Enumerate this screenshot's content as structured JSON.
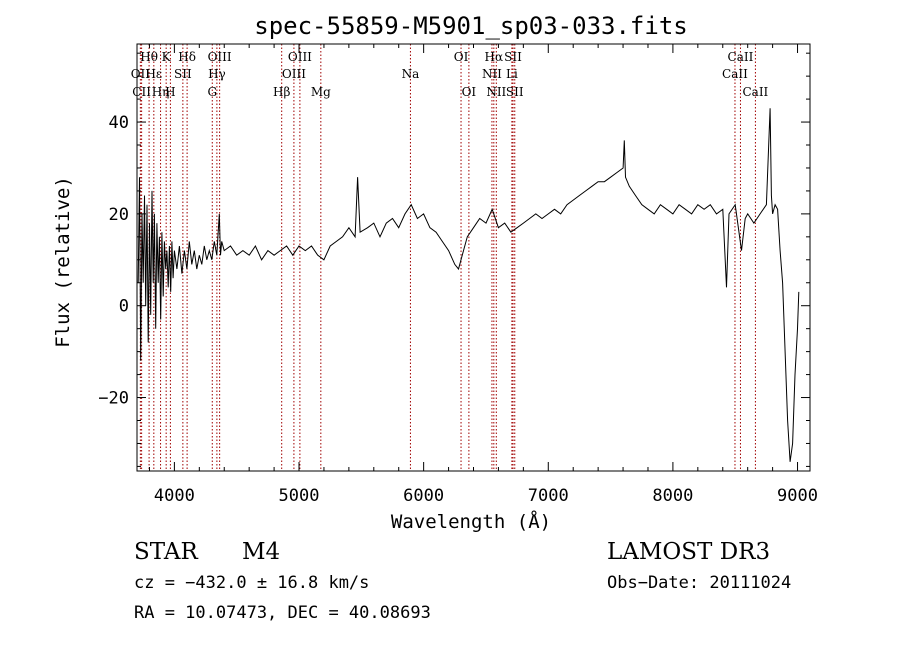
{
  "chart_data": {
    "type": "line",
    "title": "spec-55859-M5901_sp03-033.fits",
    "xlabel": "Wavelength (Å)",
    "ylabel": "Flux (relative)",
    "xlim": [
      3700,
      9100
    ],
    "ylim": [
      -36,
      57
    ],
    "x_ticks": [
      4000,
      5000,
      6000,
      7000,
      8000,
      9000
    ],
    "x_tick_labels": [
      "4000",
      "5000",
      "6000",
      "7000",
      "8000",
      "9000"
    ],
    "y_ticks": [
      -20,
      0,
      20,
      40
    ],
    "y_tick_labels": [
      "−20",
      "0",
      "20",
      "40"
    ],
    "series": [
      {
        "name": "flux",
        "points": [
          [
            3710,
            5
          ],
          [
            3720,
            28
          ],
          [
            3730,
            -12
          ],
          [
            3740,
            20
          ],
          [
            3750,
            5
          ],
          [
            3760,
            24
          ],
          [
            3770,
            0
          ],
          [
            3780,
            22
          ],
          [
            3790,
            -8
          ],
          [
            3800,
            18
          ],
          [
            3810,
            -2
          ],
          [
            3820,
            25
          ],
          [
            3830,
            5
          ],
          [
            3840,
            20
          ],
          [
            3850,
            -5
          ],
          [
            3860,
            18
          ],
          [
            3870,
            5
          ],
          [
            3880,
            15
          ],
          [
            3890,
            -3
          ],
          [
            3900,
            16
          ],
          [
            3910,
            2
          ],
          [
            3920,
            14
          ],
          [
            3930,
            8
          ],
          [
            3940,
            12
          ],
          [
            3950,
            4
          ],
          [
            3960,
            13
          ],
          [
            3970,
            3
          ],
          [
            3980,
            14
          ],
          [
            3990,
            6
          ],
          [
            4000,
            12
          ],
          [
            4020,
            8
          ],
          [
            4040,
            13
          ],
          [
            4060,
            7
          ],
          [
            4080,
            12
          ],
          [
            4100,
            8
          ],
          [
            4120,
            14
          ],
          [
            4140,
            9
          ],
          [
            4160,
            12
          ],
          [
            4180,
            8
          ],
          [
            4200,
            11
          ],
          [
            4220,
            9
          ],
          [
            4240,
            13
          ],
          [
            4260,
            10
          ],
          [
            4280,
            12
          ],
          [
            4300,
            10
          ],
          [
            4320,
            14
          ],
          [
            4340,
            11
          ],
          [
            4360,
            20
          ],
          [
            4370,
            11
          ],
          [
            4380,
            14
          ],
          [
            4400,
            12
          ],
          [
            4450,
            13
          ],
          [
            4500,
            11
          ],
          [
            4550,
            12
          ],
          [
            4600,
            11
          ],
          [
            4650,
            13
          ],
          [
            4700,
            10
          ],
          [
            4750,
            12
          ],
          [
            4800,
            11
          ],
          [
            4850,
            12
          ],
          [
            4900,
            13
          ],
          [
            4950,
            11
          ],
          [
            5000,
            13
          ],
          [
            5050,
            12
          ],
          [
            5100,
            13
          ],
          [
            5150,
            11
          ],
          [
            5200,
            10
          ],
          [
            5250,
            13
          ],
          [
            5300,
            14
          ],
          [
            5350,
            15
          ],
          [
            5400,
            17
          ],
          [
            5450,
            15
          ],
          [
            5470,
            28
          ],
          [
            5490,
            16
          ],
          [
            5550,
            17
          ],
          [
            5600,
            18
          ],
          [
            5650,
            15
          ],
          [
            5700,
            18
          ],
          [
            5750,
            19
          ],
          [
            5800,
            17
          ],
          [
            5850,
            20
          ],
          [
            5900,
            22
          ],
          [
            5950,
            19
          ],
          [
            6000,
            20
          ],
          [
            6050,
            17
          ],
          [
            6100,
            16
          ],
          [
            6150,
            14
          ],
          [
            6200,
            12
          ],
          [
            6250,
            9
          ],
          [
            6280,
            8
          ],
          [
            6320,
            12
          ],
          [
            6350,
            15
          ],
          [
            6400,
            17
          ],
          [
            6450,
            19
          ],
          [
            6500,
            18
          ],
          [
            6550,
            21
          ],
          [
            6600,
            17
          ],
          [
            6650,
            18
          ],
          [
            6700,
            16
          ],
          [
            6750,
            17
          ],
          [
            6800,
            18
          ],
          [
            6850,
            19
          ],
          [
            6900,
            20
          ],
          [
            6950,
            19
          ],
          [
            7000,
            20
          ],
          [
            7050,
            21
          ],
          [
            7100,
            20
          ],
          [
            7150,
            22
          ],
          [
            7200,
            23
          ],
          [
            7250,
            24
          ],
          [
            7300,
            25
          ],
          [
            7350,
            26
          ],
          [
            7400,
            27
          ],
          [
            7450,
            27
          ],
          [
            7500,
            28
          ],
          [
            7550,
            29
          ],
          [
            7600,
            30
          ],
          [
            7610,
            36
          ],
          [
            7620,
            28
          ],
          [
            7650,
            26
          ],
          [
            7700,
            24
          ],
          [
            7750,
            22
          ],
          [
            7800,
            21
          ],
          [
            7850,
            20
          ],
          [
            7900,
            22
          ],
          [
            7950,
            21
          ],
          [
            8000,
            20
          ],
          [
            8050,
            22
          ],
          [
            8100,
            21
          ],
          [
            8150,
            20
          ],
          [
            8200,
            22
          ],
          [
            8250,
            21
          ],
          [
            8300,
            22
          ],
          [
            8350,
            20
          ],
          [
            8400,
            21
          ],
          [
            8430,
            4
          ],
          [
            8450,
            20
          ],
          [
            8500,
            22
          ],
          [
            8550,
            12
          ],
          [
            8580,
            19
          ],
          [
            8600,
            20
          ],
          [
            8650,
            18
          ],
          [
            8700,
            20
          ],
          [
            8750,
            22
          ],
          [
            8780,
            43
          ],
          [
            8790,
            24
          ],
          [
            8800,
            20
          ],
          [
            8820,
            22
          ],
          [
            8840,
            21
          ],
          [
            8860,
            12
          ],
          [
            8880,
            5
          ],
          [
            8900,
            -10
          ],
          [
            8920,
            -25
          ],
          [
            8940,
            -34
          ],
          [
            8960,
            -30
          ],
          [
            8980,
            -15
          ],
          [
            9000,
            -5
          ],
          [
            9010,
            3
          ]
        ]
      }
    ],
    "line_labels": [
      {
        "text": "Hθ",
        "wave": 3797,
        "row": 1
      },
      {
        "text": "OII",
        "wave": 3727,
        "row": 2
      },
      {
        "text": "CII",
        "wave": 3737,
        "row": 3
      },
      {
        "text": "Hε",
        "wave": 3835,
        "row": 2
      },
      {
        "text": "Hη",
        "wave": 3889,
        "row": 3
      },
      {
        "text": "K",
        "wave": 3934,
        "row": 1
      },
      {
        "text": "SII",
        "wave": 4068,
        "row": 2
      },
      {
        "text": "H",
        "wave": 3968,
        "row": 3
      },
      {
        "text": "Hδ",
        "wave": 4102,
        "row": 1
      },
      {
        "text": "OIII",
        "wave": 4363,
        "row": 1
      },
      {
        "text": "Hγ",
        "wave": 4341,
        "row": 2
      },
      {
        "text": "G",
        "wave": 4304,
        "row": 3
      },
      {
        "text": "Hβ",
        "wave": 4861,
        "row": 3
      },
      {
        "text": "OIII",
        "wave": 5007,
        "row": 1
      },
      {
        "text": "OIII",
        "wave": 4959,
        "row": 2
      },
      {
        "text": "Mg",
        "wave": 5175,
        "row": 3
      },
      {
        "text": "Na",
        "wave": 5894,
        "row": 2
      },
      {
        "text": "OI",
        "wave": 6300,
        "row": 1
      },
      {
        "text": "OI",
        "wave": 6363,
        "row": 3
      },
      {
        "text": "Hα",
        "wave": 6563,
        "row": 1
      },
      {
        "text": "SII",
        "wave": 6717,
        "row": 1
      },
      {
        "text": "NII",
        "wave": 6548,
        "row": 2
      },
      {
        "text": "Li",
        "wave": 6708,
        "row": 2
      },
      {
        "text": "NII",
        "wave": 6583,
        "row": 3
      },
      {
        "text": "SII",
        "wave": 6731,
        "row": 3
      },
      {
        "text": "CaII",
        "wave": 8542,
        "row": 1
      },
      {
        "text": "CaII",
        "wave": 8498,
        "row": 2
      },
      {
        "text": "CaII",
        "wave": 8662,
        "row": 3
      }
    ]
  },
  "info": {
    "object_class": "STAR",
    "subclass": "M4",
    "survey": "LAMOST DR3",
    "velocity": "cz = −432.0 ± 16.8 km/s",
    "obs_date": "Obs−Date: 20111024",
    "coords": "RA =  10.07473, DEC =  40.08693"
  },
  "colors": {
    "line": "#000000",
    "marker": "#a00000",
    "axis": "#000000"
  }
}
